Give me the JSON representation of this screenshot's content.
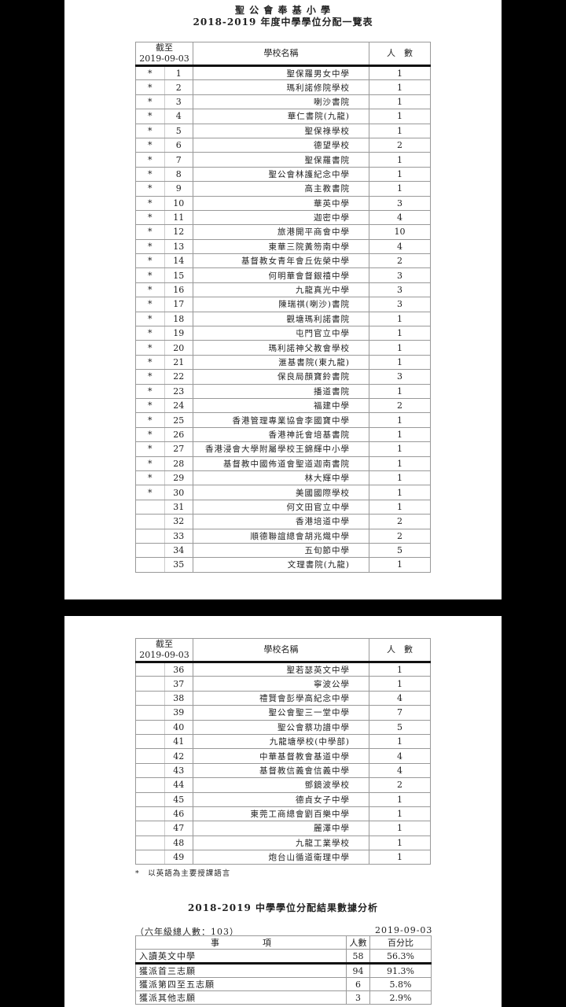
{
  "page1": {
    "school": "聖 公 會 奉 基 小 學",
    "title": "2018-2019 年度中學學位分配一覽表"
  },
  "header": {
    "as_of_label": "截至",
    "as_of_date": "2019-09-03",
    "school_name": "學校名稱",
    "count": "人　數"
  },
  "rows": [
    {
      "star": "*",
      "no": "1",
      "name": "聖保羅男女中學",
      "count": "1"
    },
    {
      "star": "*",
      "no": "2",
      "name": "瑪利諾修院學校",
      "count": "1"
    },
    {
      "star": "*",
      "no": "3",
      "name": "喇沙書院",
      "count": "1"
    },
    {
      "star": "*",
      "no": "4",
      "name": "華仁書院(九龍)",
      "count": "1"
    },
    {
      "star": "*",
      "no": "5",
      "name": "聖保祿學校",
      "count": "1"
    },
    {
      "star": "*",
      "no": "6",
      "name": "德望學校",
      "count": "2"
    },
    {
      "star": "*",
      "no": "7",
      "name": "聖保羅書院",
      "count": "1"
    },
    {
      "star": "*",
      "no": "8",
      "name": "聖公會林護紀念中學",
      "count": "1"
    },
    {
      "star": "*",
      "no": "9",
      "name": "高主教書院",
      "count": "1"
    },
    {
      "star": "*",
      "no": "10",
      "name": "華英中學",
      "count": "3"
    },
    {
      "star": "*",
      "no": "11",
      "name": "迦密中學",
      "count": "4"
    },
    {
      "star": "*",
      "no": "12",
      "name": "旅港開平商會中學",
      "count": "10"
    },
    {
      "star": "*",
      "no": "13",
      "name": "東華三院黃笏南中學",
      "count": "4"
    },
    {
      "star": "*",
      "no": "14",
      "name": "基督教女青年會丘佐榮中學",
      "count": "2"
    },
    {
      "star": "*",
      "no": "15",
      "name": "何明華會督銀禧中學",
      "count": "3"
    },
    {
      "star": "*",
      "no": "16",
      "name": "九龍真光中學",
      "count": "3"
    },
    {
      "star": "*",
      "no": "17",
      "name": "陳瑞祺(喇沙)書院",
      "count": "3"
    },
    {
      "star": "*",
      "no": "18",
      "name": "觀塘瑪利諾書院",
      "count": "1"
    },
    {
      "star": "*",
      "no": "19",
      "name": "屯門官立中學",
      "count": "1"
    },
    {
      "star": "*",
      "no": "20",
      "name": "瑪利諾神父教會學校",
      "count": "1"
    },
    {
      "star": "*",
      "no": "21",
      "name": "滙基書院(東九龍)",
      "count": "1"
    },
    {
      "star": "*",
      "no": "22",
      "name": "保良局顏寶鈴書院",
      "count": "3"
    },
    {
      "star": "*",
      "no": "23",
      "name": "播道書院",
      "count": "1"
    },
    {
      "star": "*",
      "no": "24",
      "name": "福建中學",
      "count": "2"
    },
    {
      "star": "*",
      "no": "25",
      "name": "香港管理專業協會李國寶中學",
      "count": "1"
    },
    {
      "star": "*",
      "no": "26",
      "name": "香港神託會培基書院",
      "count": "1"
    },
    {
      "star": "*",
      "no": "27",
      "name": "香港浸會大學附屬學校王錦輝中小學",
      "count": "1"
    },
    {
      "star": "*",
      "no": "28",
      "name": "基督教中國佈道會聖道迦南書院",
      "count": "1"
    },
    {
      "star": "*",
      "no": "29",
      "name": "林大輝中學",
      "count": "1"
    },
    {
      "star": "*",
      "no": "30",
      "name": "美國國際學校",
      "count": "1"
    },
    {
      "star": "",
      "no": "31",
      "name": "何文田官立中學",
      "count": "1"
    },
    {
      "star": "",
      "no": "32",
      "name": "香港培道中學",
      "count": "2"
    },
    {
      "star": "",
      "no": "33",
      "name": "順德聯誼總會胡兆熾中學",
      "count": "2"
    },
    {
      "star": "",
      "no": "34",
      "name": "五旬節中學",
      "count": "5"
    },
    {
      "star": "",
      "no": "35",
      "name": "文理書院(九龍)",
      "count": "1"
    },
    {
      "star": "",
      "no": "36",
      "name": "聖若瑟英文中學",
      "count": "1"
    },
    {
      "star": "",
      "no": "37",
      "name": "寧波公學",
      "count": "1"
    },
    {
      "star": "",
      "no": "38",
      "name": "禮賢會彭學高紀念中學",
      "count": "4"
    },
    {
      "star": "",
      "no": "39",
      "name": "聖公會聖三一堂中學",
      "count": "7"
    },
    {
      "star": "",
      "no": "40",
      "name": "聖公會蔡功譜中學",
      "count": "5"
    },
    {
      "star": "",
      "no": "41",
      "name": "九龍塘學校(中學部)",
      "count": "1"
    },
    {
      "star": "",
      "no": "42",
      "name": "中華基督教會基道中學",
      "count": "4"
    },
    {
      "star": "",
      "no": "43",
      "name": "基督教信義會信義中學",
      "count": "4"
    },
    {
      "star": "",
      "no": "44",
      "name": "鄧鏡波學校",
      "count": "2"
    },
    {
      "star": "",
      "no": "45",
      "name": "德貞女子中學",
      "count": "1"
    },
    {
      "star": "",
      "no": "46",
      "name": "東莞工商總會劉百樂中學",
      "count": "1"
    },
    {
      "star": "",
      "no": "47",
      "name": "麗澤中學",
      "count": "1"
    },
    {
      "star": "",
      "no": "48",
      "name": "九龍工業學校",
      "count": "1"
    },
    {
      "star": "",
      "no": "49",
      "name": "炮台山循道衛理中學",
      "count": "1"
    }
  ],
  "footnote": "*　以英語為主要授課語言",
  "summary": {
    "title": "2018-2019 中學學位分配結果數據分析",
    "total": "（六年級總人數：103）",
    "date": "2019-09-03",
    "headers": {
      "item": "事　　　　　項",
      "count": "人數",
      "pct": "百分比"
    },
    "rows": [
      {
        "item": "入讀英文中學",
        "count": "58",
        "pct": "56.3%"
      },
      {
        "item": "獲派首三志願",
        "count": "94",
        "pct": "91.3%"
      },
      {
        "item": "獲派第四至五志願",
        "count": "6",
        "pct": "5.8%"
      },
      {
        "item": "獲派其他志願",
        "count": "3",
        "pct": "2.9%"
      }
    ]
  }
}
